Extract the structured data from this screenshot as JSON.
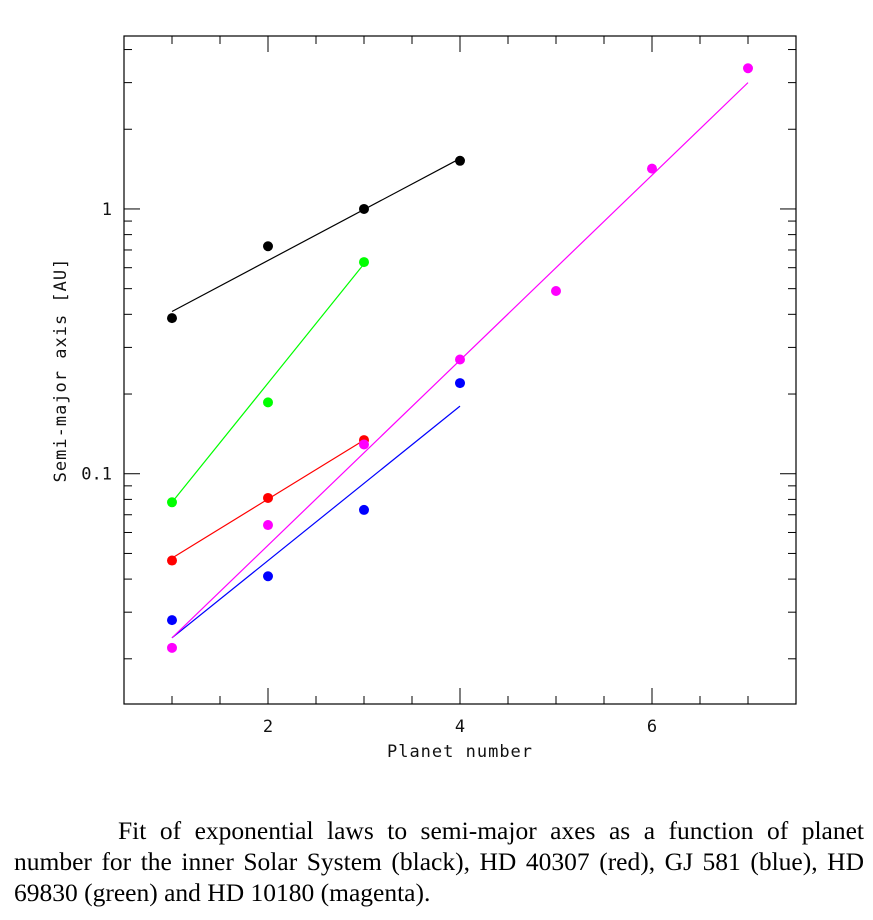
{
  "chart_data": {
    "type": "scatter",
    "xlabel": "Planet number",
    "ylabel": "Semi-major axis [AU]",
    "yscale": "log",
    "xlim": [
      0.5,
      7.5
    ],
    "ylim": [
      0.0135,
      4.5
    ],
    "x_ticks": [
      2,
      4,
      6
    ],
    "y_ticks_labeled": [
      {
        "value": 0.1,
        "label": "0.1"
      },
      {
        "value": 1,
        "label": "1"
      }
    ],
    "series": [
      {
        "color": "#000000",
        "x": [
          1,
          2,
          3,
          4
        ],
        "y": [
          0.387,
          0.723,
          1.0,
          1.52
        ],
        "fit": {
          "x": [
            1,
            4
          ],
          "y": [
            0.41,
            1.55
          ]
        }
      },
      {
        "color": "#ff0000",
        "x": [
          1,
          2,
          3
        ],
        "y": [
          0.047,
          0.081,
          0.134
        ],
        "fit": {
          "x": [
            1,
            3
          ],
          "y": [
            0.048,
            0.134
          ]
        }
      },
      {
        "color": "#0000ff",
        "x": [
          1,
          2,
          3,
          4
        ],
        "y": [
          0.028,
          0.041,
          0.073,
          0.22
        ],
        "fit": {
          "x": [
            1,
            4
          ],
          "y": [
            0.024,
            0.18
          ]
        }
      },
      {
        "color": "#00ff00",
        "x": [
          1,
          2,
          3
        ],
        "y": [
          0.078,
          0.186,
          0.63
        ],
        "fit": {
          "x": [
            1,
            3
          ],
          "y": [
            0.078,
            0.62
          ]
        }
      },
      {
        "color": "#ff00ff",
        "x": [
          1,
          2,
          3,
          4,
          5,
          6,
          7
        ],
        "y": [
          0.022,
          0.064,
          0.129,
          0.27,
          0.49,
          1.42,
          3.4
        ],
        "fit": {
          "x": [
            1,
            7
          ],
          "y": [
            0.024,
            3.0
          ]
        }
      }
    ]
  },
  "caption": "Fit of exponential laws to semi-major axes as a function of planet number for the inner Solar System (black), HD 40307 (red), GJ 581 (blue), HD 69830 (green) and HD 10180 (magenta)."
}
